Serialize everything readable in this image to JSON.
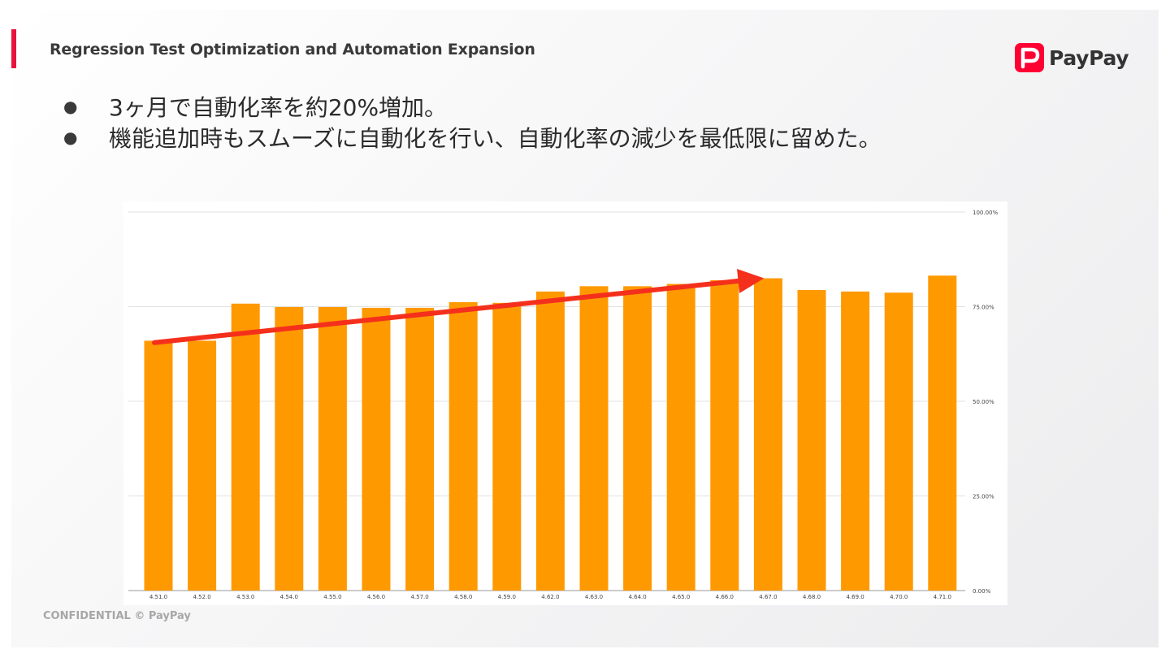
{
  "slide": {
    "title": "Regression Test Optimization and Automation Expansion",
    "logo_text": "PayPay",
    "bullets": [
      "3ヶ月で自動化率を約20%増加。",
      "機能追加時もスムーズに自動化を行い、自動化率の減少を最低限に留めた。"
    ],
    "footer": "CONFIDENTIAL © PayPay"
  },
  "colors": {
    "accent": "#e8123c",
    "brand": "#ff0033",
    "bar": "#ff9900",
    "trend_arrow": "#f4301c"
  },
  "icons": {
    "logo": "paypay-logo-icon",
    "bullet": "bullet-dot-icon"
  },
  "chart_data": {
    "type": "bar",
    "categories": [
      "4.51.0",
      "4.52.0",
      "4.53.0",
      "4.54.0",
      "4.55.0",
      "4.56.0",
      "4.57.0",
      "4.58.0",
      "4.59.0",
      "4.62.0",
      "4.63.0",
      "4.64.0",
      "4.65.0",
      "4.66.0",
      "4.67.0",
      "4.68.0",
      "4.69.0",
      "4.70.0",
      "4.71.0"
    ],
    "values": [
      66.0,
      66.0,
      75.8,
      74.9,
      74.9,
      74.7,
      74.7,
      76.2,
      76.0,
      79.0,
      80.4,
      80.4,
      81.0,
      82.0,
      82.5,
      79.4,
      79.0,
      78.7,
      83.2
    ],
    "y_ticks": [
      "0.00%",
      "25.00%",
      "50.00%",
      "75.00%",
      "100.00%"
    ],
    "ylim": [
      0,
      100
    ],
    "y_axis_side": "right",
    "grid": true,
    "legend": "none",
    "annotations": [
      {
        "type": "arrow",
        "from_category": "4.51.0",
        "from_value": 65.5,
        "to_category": "4.67.0",
        "to_value": 82.5,
        "color": "#f4301c"
      }
    ]
  }
}
